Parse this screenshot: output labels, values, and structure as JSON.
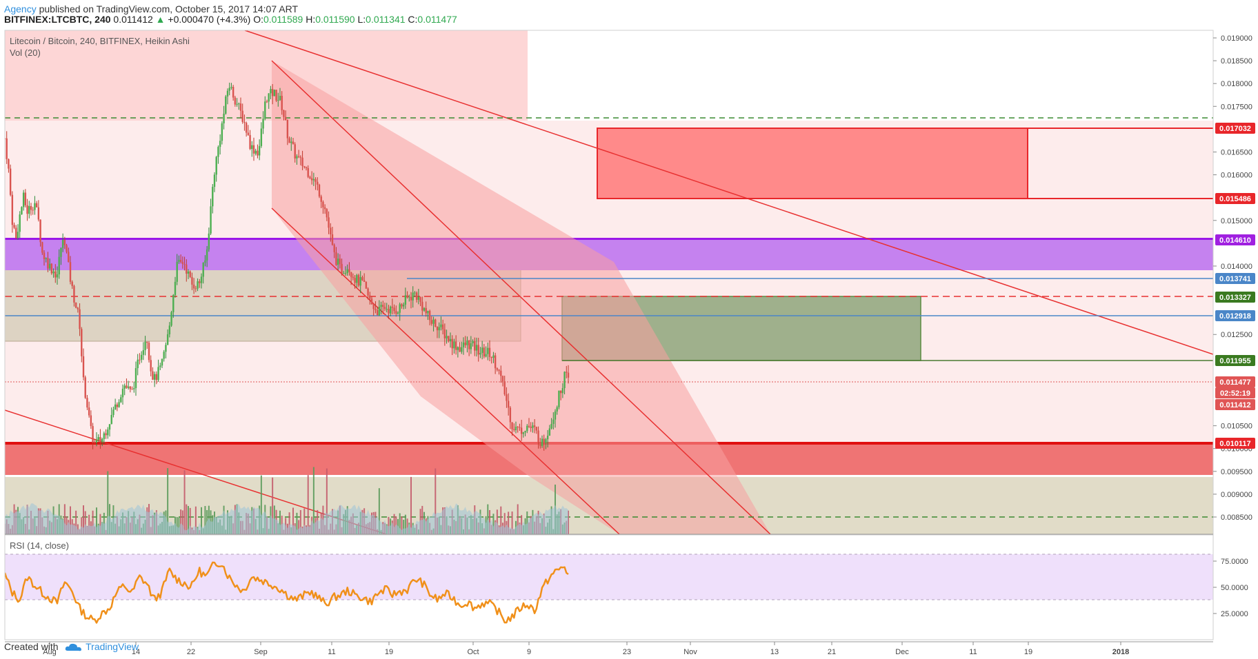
{
  "header": {
    "agency": "Agency",
    "published": "published on TradingView.com, October 15, 2017 14:07 ART",
    "symbol": "BITFINEX:LTCBTC, 240",
    "last": "0.011412",
    "change_arrow": "▲",
    "change": "+0.000470 (+4.3%)",
    "o_label": "O:",
    "o_value": "0.011589",
    "h_label": "H:",
    "h_value": "0.011590",
    "l_label": "L:",
    "l_value": "0.011341",
    "c_label": "C:",
    "c_value": "0.011477"
  },
  "footer": {
    "created_with": "Created with",
    "brand": "TradingView"
  },
  "chart_data": {
    "type": "candlestick",
    "title": "Litecoin / Bitcoin, 240, BITFINEX, Heikin Ashi",
    "volume_label": "Vol (20)",
    "rsi_label": "RSI (14, close)",
    "x_ticks": [
      "Aug",
      "14",
      "22",
      "Sep",
      "11",
      "19",
      "Oct",
      "9",
      "23",
      "Nov",
      "13",
      "21",
      "Dec",
      "11",
      "19",
      "2018"
    ],
    "y_ticks": [
      "0.019000",
      "0.018500",
      "0.018000",
      "0.017500",
      "0.016500",
      "0.016000",
      "0.015000",
      "0.014000",
      "0.012500",
      "0.010500",
      "0.010000",
      "0.009500",
      "0.009000",
      "0.008500"
    ],
    "rsi_ticks": [
      "75.0000",
      "50.0000",
      "25.0000"
    ],
    "rsi_levels": [
      70,
      50,
      30
    ],
    "price_labels": [
      {
        "value": "0.017032",
        "color": "#e8262a"
      },
      {
        "value": "0.015486",
        "color": "#e8262a"
      },
      {
        "value": "0.014610",
        "color": "#a020e0"
      },
      {
        "value": "0.013741",
        "color": "#4a86c8"
      },
      {
        "value": "0.013327",
        "color": "#3a7a20"
      },
      {
        "value": "0.012918",
        "color": "#4a86c8"
      },
      {
        "value": "0.011955",
        "color": "#3a7a20"
      },
      {
        "value": "0.011477",
        "color": "#e05555"
      },
      {
        "value": "02:52:19",
        "color": "#e05555"
      },
      {
        "value": "0.011412",
        "color": "#e05555"
      },
      {
        "value": "0.010117",
        "color": "#e8262a"
      }
    ],
    "price_path": [
      [
        0,
        0.0168
      ],
      [
        0.5,
        0.0161
      ],
      [
        1,
        0.015
      ],
      [
        1.5,
        0.0146
      ],
      [
        2,
        0.0151
      ],
      [
        2.5,
        0.0155
      ],
      [
        3,
        0.0152
      ],
      [
        4,
        0.0154
      ],
      [
        4.5,
        0.015
      ],
      [
        5,
        0.0143
      ],
      [
        6,
        0.014
      ],
      [
        7,
        0.0138
      ],
      [
        7.5,
        0.0144
      ],
      [
        8,
        0.0146
      ],
      [
        8.5,
        0.014
      ],
      [
        9,
        0.0135
      ],
      [
        10,
        0.0128
      ],
      [
        10.5,
        0.0115
      ],
      [
        11,
        0.011
      ],
      [
        11.5,
        0.0104
      ],
      [
        12,
        0.0101
      ],
      [
        13,
        0.0102
      ],
      [
        14,
        0.0106
      ],
      [
        15,
        0.011
      ],
      [
        16,
        0.0114
      ],
      [
        17,
        0.0112
      ],
      [
        18,
        0.012
      ],
      [
        19,
        0.0125
      ],
      [
        19.5,
        0.0118
      ],
      [
        20,
        0.0115
      ],
      [
        21,
        0.0118
      ],
      [
        22,
        0.0126
      ],
      [
        23,
        0.014
      ],
      [
        24,
        0.0141
      ],
      [
        25,
        0.0136
      ],
      [
        26,
        0.0136
      ],
      [
        27,
        0.0142
      ],
      [
        28,
        0.016
      ],
      [
        29,
        0.017
      ],
      [
        30,
        0.018
      ],
      [
        31,
        0.0176
      ],
      [
        32,
        0.0172
      ],
      [
        33,
        0.0166
      ],
      [
        34,
        0.0165
      ],
      [
        35,
        0.0177
      ],
      [
        36,
        0.0178
      ],
      [
        37,
        0.0176
      ],
      [
        38,
        0.0168
      ],
      [
        39,
        0.0164
      ],
      [
        40,
        0.0162
      ],
      [
        41,
        0.016
      ],
      [
        42,
        0.0157
      ],
      [
        43,
        0.0152
      ],
      [
        44,
        0.0143
      ],
      [
        45,
        0.0139
      ],
      [
        46,
        0.014
      ],
      [
        47,
        0.0137
      ],
      [
        48,
        0.0136
      ],
      [
        49,
        0.0132
      ],
      [
        50,
        0.013
      ],
      [
        51,
        0.0131
      ],
      [
        52,
        0.013
      ],
      [
        53,
        0.0131
      ],
      [
        54,
        0.0133
      ],
      [
        55,
        0.0134
      ],
      [
        56,
        0.0131
      ],
      [
        57,
        0.0128
      ],
      [
        58,
        0.0127
      ],
      [
        59,
        0.0125
      ],
      [
        60,
        0.0123
      ],
      [
        61,
        0.0122
      ],
      [
        62,
        0.0123
      ],
      [
        63,
        0.0122
      ],
      [
        64,
        0.0121
      ],
      [
        65,
        0.0121
      ],
      [
        66,
        0.0118
      ],
      [
        67,
        0.0112
      ],
      [
        68,
        0.0105
      ],
      [
        69,
        0.0104
      ],
      [
        70,
        0.0105
      ],
      [
        71,
        0.0104
      ],
      [
        72,
        0.0101
      ],
      [
        73,
        0.0105
      ],
      [
        74,
        0.011
      ],
      [
        75,
        0.0116
      ],
      [
        75.5,
        0.01148
      ]
    ],
    "rsi_path": [
      [
        0,
        62
      ],
      [
        1,
        45
      ],
      [
        2,
        38
      ],
      [
        3,
        60
      ],
      [
        4,
        52
      ],
      [
        5,
        45
      ],
      [
        6,
        40
      ],
      [
        7,
        35
      ],
      [
        8,
        55
      ],
      [
        9,
        47
      ],
      [
        10,
        30
      ],
      [
        11,
        22
      ],
      [
        12,
        18
      ],
      [
        13,
        25
      ],
      [
        14,
        30
      ],
      [
        15,
        45
      ],
      [
        16,
        52
      ],
      [
        17,
        44
      ],
      [
        18,
        60
      ],
      [
        19,
        54
      ],
      [
        20,
        38
      ],
      [
        21,
        45
      ],
      [
        22,
        66
      ],
      [
        23,
        58
      ],
      [
        24,
        54
      ],
      [
        25,
        50
      ],
      [
        26,
        66
      ],
      [
        27,
        60
      ],
      [
        28,
        72
      ],
      [
        29,
        74
      ],
      [
        30,
        60
      ],
      [
        31,
        52
      ],
      [
        32,
        46
      ],
      [
        33,
        60
      ],
      [
        34,
        58
      ],
      [
        35,
        55
      ],
      [
        36,
        52
      ],
      [
        37,
        48
      ],
      [
        38,
        42
      ],
      [
        39,
        38
      ],
      [
        40,
        42
      ],
      [
        41,
        46
      ],
      [
        42,
        40
      ],
      [
        43,
        34
      ],
      [
        44,
        40
      ],
      [
        45,
        43
      ],
      [
        46,
        47
      ],
      [
        47,
        42
      ],
      [
        48,
        40
      ],
      [
        49,
        36
      ],
      [
        50,
        44
      ],
      [
        51,
        48
      ],
      [
        52,
        43
      ],
      [
        53,
        46
      ],
      [
        54,
        48
      ],
      [
        55,
        58
      ],
      [
        56,
        54
      ],
      [
        57,
        43
      ],
      [
        58,
        38
      ],
      [
        59,
        44
      ],
      [
        60,
        40
      ],
      [
        61,
        33
      ],
      [
        62,
        36
      ],
      [
        63,
        30
      ],
      [
        64,
        35
      ],
      [
        65,
        34
      ],
      [
        66,
        28
      ],
      [
        67,
        18
      ],
      [
        68,
        22
      ],
      [
        69,
        30
      ],
      [
        70,
        34
      ],
      [
        71,
        28
      ],
      [
        72,
        48
      ],
      [
        73,
        60
      ],
      [
        74,
        66
      ],
      [
        75,
        70
      ],
      [
        75.5,
        62
      ]
    ]
  }
}
